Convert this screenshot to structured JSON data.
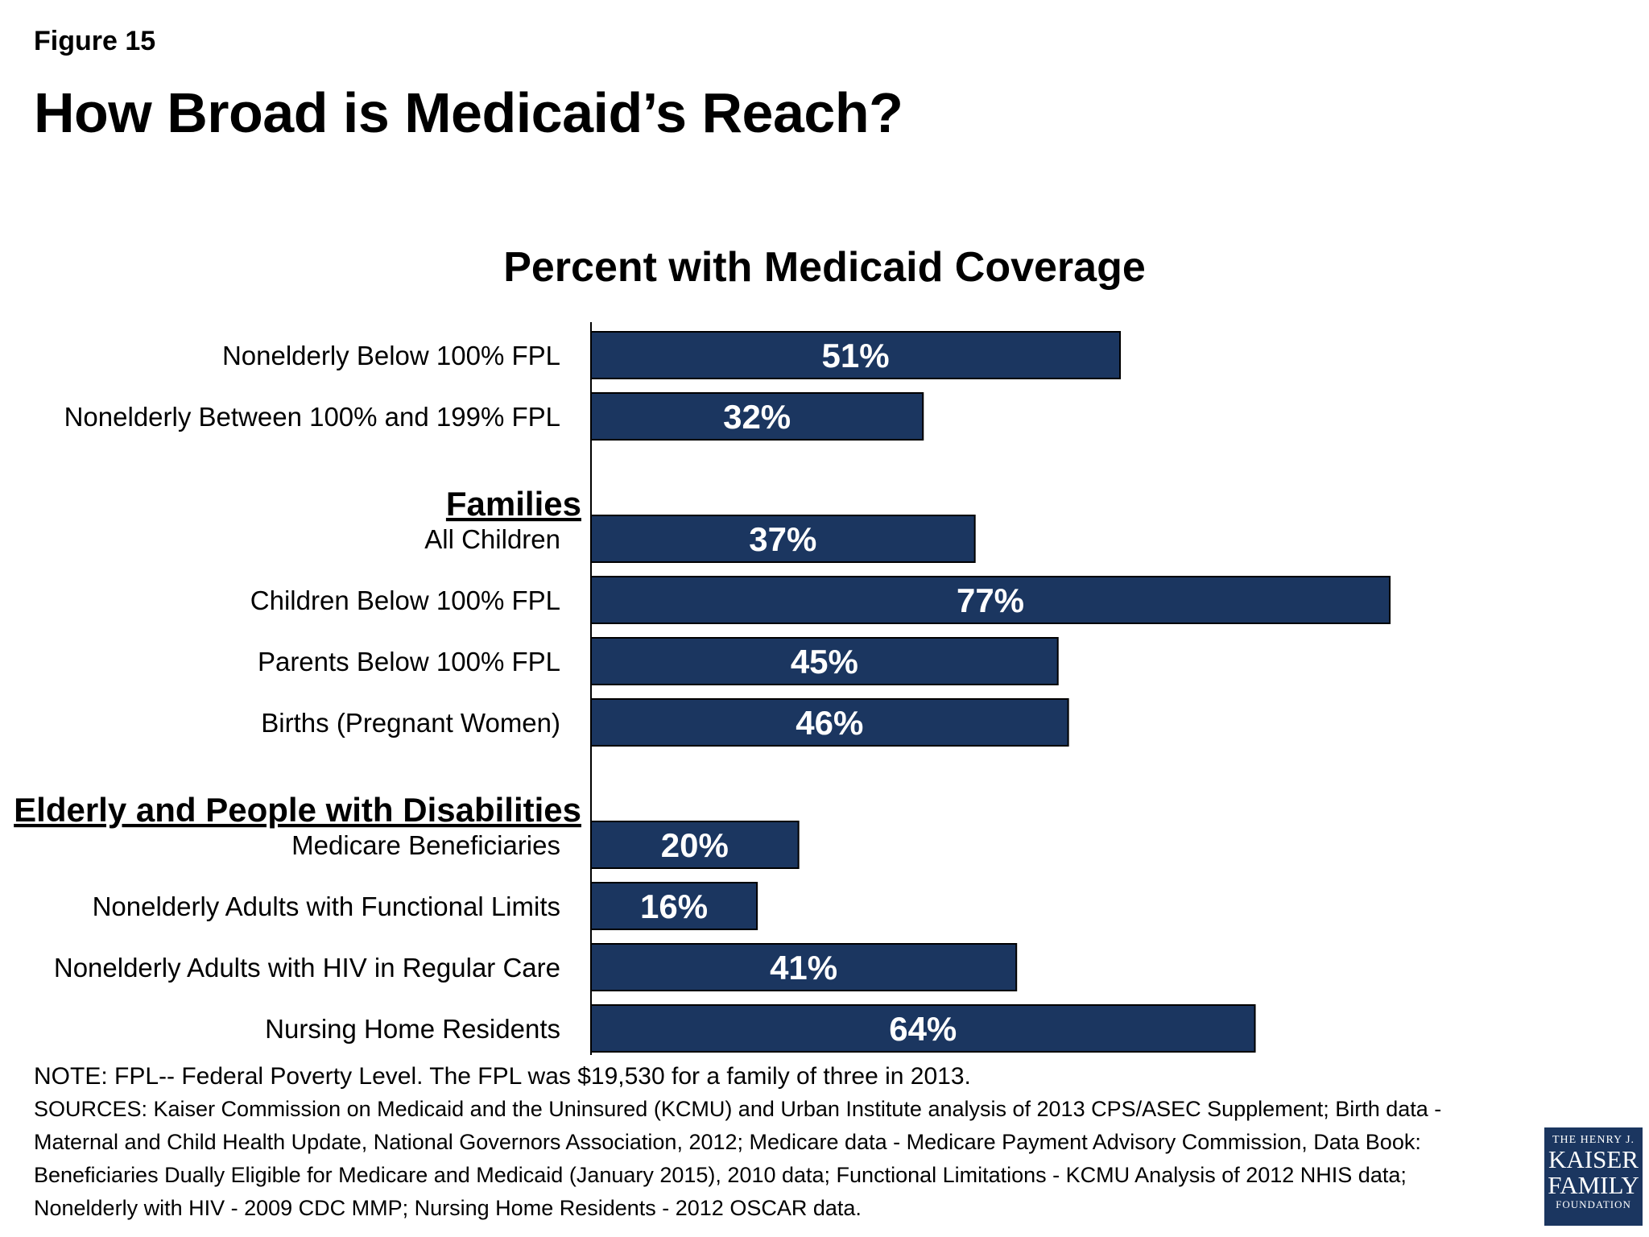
{
  "figure_label": "Figure 15",
  "title": "How Broad is Medicaid’s Reach?",
  "chart_data": {
    "type": "bar",
    "orientation": "horizontal",
    "title": "Percent with Medicaid Coverage",
    "xlim": [
      0,
      100
    ],
    "bar_color": "#1b3660",
    "label_suffix": "%",
    "groups": [
      {
        "header": "",
        "items": [
          {
            "label": "Nonelderly Below 100% FPL",
            "value": 51
          },
          {
            "label": "Nonelderly Between 100% and 199% FPL",
            "value": 32
          }
        ]
      },
      {
        "header": "Families",
        "items": [
          {
            "label": "All Children",
            "value": 37
          },
          {
            "label": "Children Below 100% FPL",
            "value": 77
          },
          {
            "label": "Parents Below 100% FPL",
            "value": 45
          },
          {
            "label": "Births (Pregnant Women)",
            "value": 46
          }
        ]
      },
      {
        "header": "Elderly and People with Disabilities",
        "items": [
          {
            "label": "Medicare Beneficiaries",
            "value": 20
          },
          {
            "label": "Nonelderly Adults with Functional Limits",
            "value": 16
          },
          {
            "label": "Nonelderly Adults with HIV in Regular Care",
            "value": 41
          },
          {
            "label": "Nursing Home Residents",
            "value": 64
          }
        ]
      }
    ]
  },
  "note": "NOTE: FPL-- Federal Poverty Level. The FPL was $19,530 for a family of three in 2013.",
  "sources": "SOURCES: Kaiser Commission on Medicaid and the Uninsured (KCMU) and Urban Institute analysis of 2013 CPS/ASEC Supplement; Birth data - Maternal and Child Health Update, National Governors Association, 2012; Medicare data - Medicare Payment Advisory Commission, Data Book: Beneficiaries Dually Eligible for Medicare and Medicaid (January 2015), 2010 data; Functional Limitations - KCMU Analysis of 2012 NHIS data; Nonelderly with HIV - 2009 CDC MMP; Nursing Home Residents - 2012 OSCAR data.",
  "logo": {
    "line1": "THE HENRY J.",
    "line2": "KAISER",
    "line3": "FAMILY",
    "line4": "FOUNDATION"
  }
}
